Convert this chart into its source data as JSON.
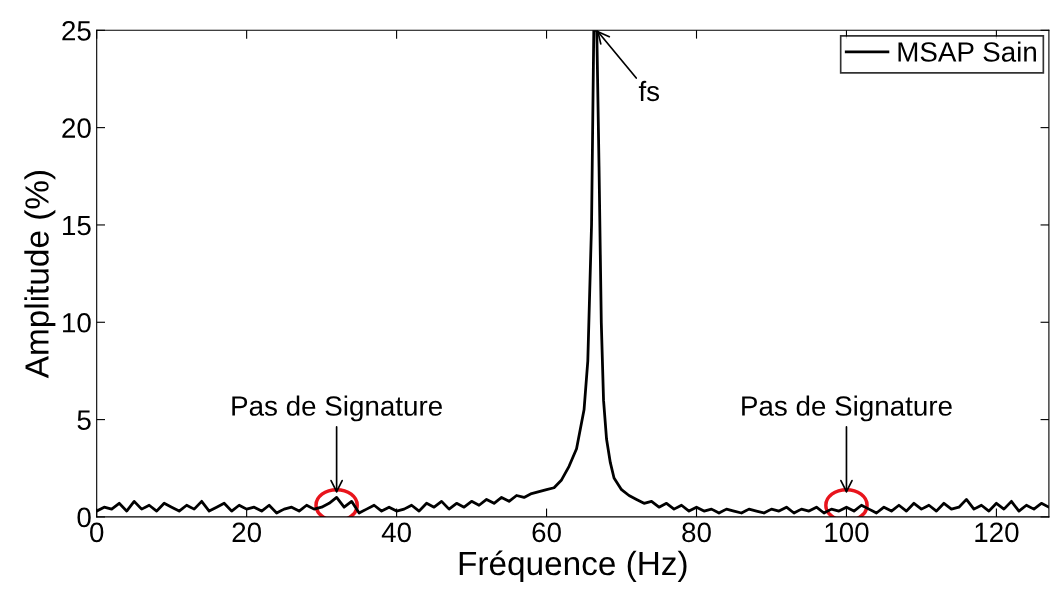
{
  "chart_data": {
    "type": "line",
    "xlabel": "Fréquence (Hz)",
    "ylabel": "Amplitude (%)",
    "xlim": [
      0,
      127
    ],
    "ylim": [
      0,
      25
    ],
    "xticks": [
      0,
      20,
      40,
      60,
      80,
      100,
      120
    ],
    "yticks": [
      0,
      5,
      10,
      15,
      20,
      25
    ],
    "grid": false,
    "legend": "top right",
    "line_style": "solid",
    "marker": "none",
    "x": [
      0,
      1,
      2,
      3,
      4,
      5,
      6,
      7,
      8,
      9,
      10,
      11,
      12,
      13,
      14,
      15,
      16,
      17,
      18,
      19,
      20,
      21,
      22,
      23,
      24,
      25,
      26,
      27,
      28,
      29,
      30,
      31,
      32,
      33,
      34,
      35,
      36,
      37,
      38,
      39,
      40,
      41,
      42,
      43,
      44,
      45,
      46,
      47,
      48,
      49,
      50,
      51,
      52,
      53,
      54,
      55,
      56,
      57,
      58,
      59,
      60,
      61,
      62,
      63,
      64,
      65,
      65.5,
      66,
      66.3,
      66.7,
      67,
      67.3,
      67.6,
      68,
      68.5,
      69,
      70,
      71,
      72,
      73,
      74,
      75,
      76,
      77,
      78,
      79,
      80,
      81,
      82,
      83,
      84,
      85,
      86,
      87,
      88,
      89,
      90,
      91,
      92,
      93,
      94,
      95,
      96,
      97,
      98,
      99,
      100,
      101,
      102,
      103,
      104,
      105,
      106,
      107,
      108,
      109,
      110,
      111,
      112,
      113,
      114,
      115,
      116,
      117,
      118,
      119,
      120,
      121,
      122,
      123,
      124,
      125,
      126,
      127
    ],
    "series": [
      {
        "name": "MSAP Sain",
        "color": "#000000",
        "values": [
          0.3,
          0.5,
          0.4,
          0.7,
          0.3,
          0.8,
          0.4,
          0.6,
          0.3,
          0.7,
          0.5,
          0.3,
          0.6,
          0.4,
          0.8,
          0.3,
          0.5,
          0.7,
          0.3,
          0.6,
          0.4,
          0.5,
          0.3,
          0.6,
          0.2,
          0.4,
          0.5,
          0.3,
          0.6,
          0.4,
          0.5,
          0.7,
          1.0,
          0.5,
          0.8,
          0.2,
          0.4,
          0.6,
          0.3,
          0.5,
          0.3,
          0.4,
          0.6,
          0.3,
          0.7,
          0.5,
          0.8,
          0.4,
          0.7,
          0.5,
          0.8,
          0.6,
          0.9,
          0.7,
          1.0,
          0.8,
          1.1,
          1.0,
          1.2,
          1.3,
          1.4,
          1.5,
          1.9,
          2.6,
          3.5,
          5.5,
          8,
          15,
          25,
          25,
          18,
          10,
          6,
          4,
          2.8,
          2.0,
          1.4,
          1.1,
          0.9,
          0.7,
          0.8,
          0.5,
          0.7,
          0.4,
          0.6,
          0.3,
          0.5,
          0.3,
          0.4,
          0.2,
          0.4,
          0.3,
          0.2,
          0.4,
          0.3,
          0.2,
          0.4,
          0.3,
          0.5,
          0.2,
          0.4,
          0.3,
          0.5,
          0.2,
          0.4,
          0.3,
          0.5,
          0.3,
          0.6,
          0.4,
          0.2,
          0.5,
          0.3,
          0.6,
          0.3,
          0.7,
          0.4,
          0.6,
          0.3,
          0.7,
          0.4,
          0.5,
          0.9,
          0.4,
          0.6,
          0.3,
          0.7,
          0.4,
          0.8,
          0.3,
          0.6,
          0.4,
          0.7,
          0.5
        ]
      }
    ],
    "annotations": [
      {
        "text": "fs",
        "x": 66.7,
        "y": 25
      },
      {
        "text": "Pas de Signature",
        "x": 32,
        "y": 1.2
      },
      {
        "text": "Pas de Signature",
        "x": 100,
        "y": 1.2
      }
    ]
  }
}
